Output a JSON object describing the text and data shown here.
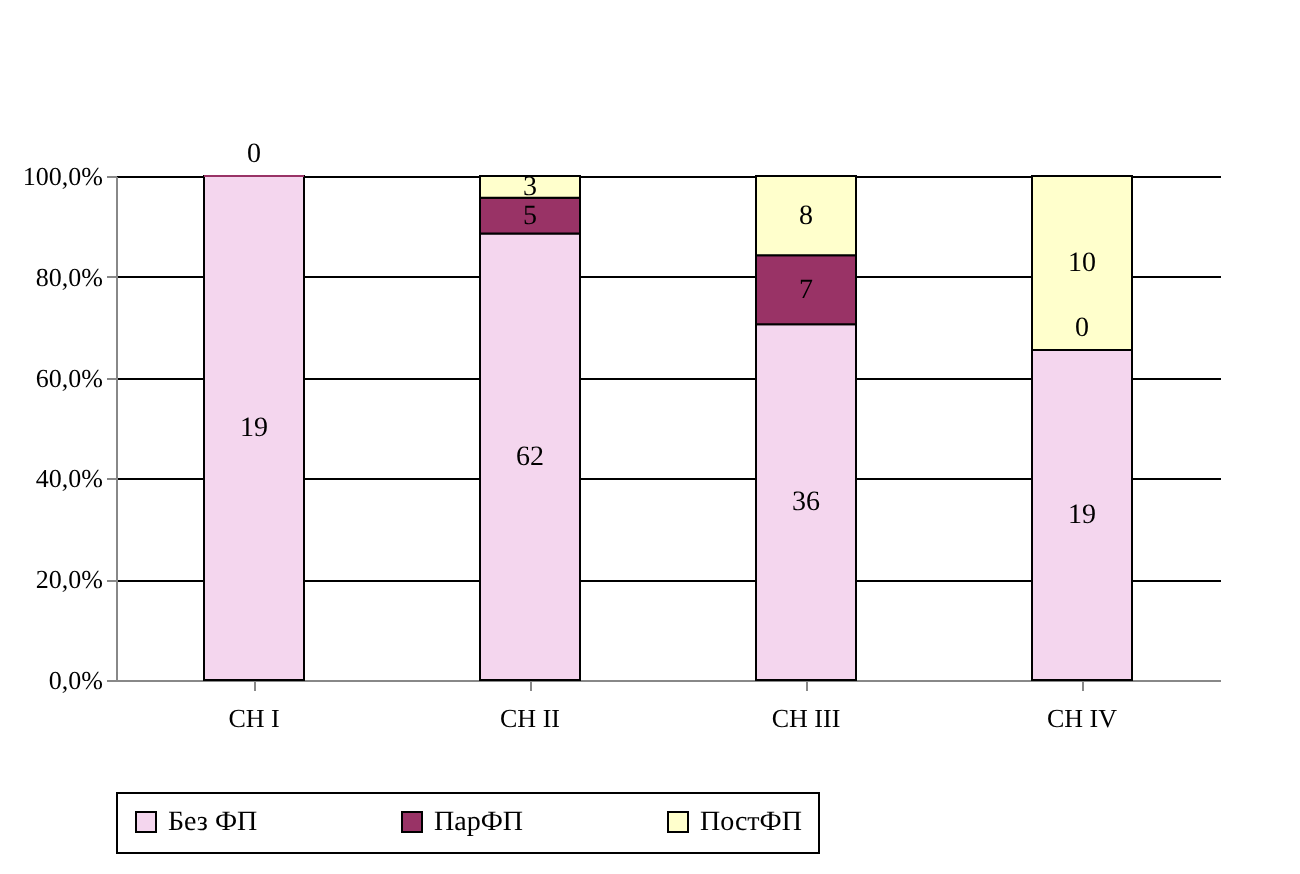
{
  "chart_data": {
    "type": "bar",
    "stacked": true,
    "categories": [
      "CH I",
      "CH II",
      "CH III",
      "CH IV"
    ],
    "series": [
      {
        "name": "Без ФП",
        "color": "#f4d6ee",
        "values": [
          100,
          88.6,
          70.6,
          65.5
        ]
      },
      {
        "name": "ПарФП",
        "color": "#993366",
        "values": [
          0,
          7.1,
          13.7,
          0
        ]
      },
      {
        "name": "ПостФП",
        "color": "#ffffcc",
        "values": [
          null,
          4.3,
          15.7,
          34.5
        ]
      }
    ],
    "annotations": [
      "19",
      "0",
      "62",
      "5",
      "3",
      "36",
      "7",
      "8",
      "19",
      "0",
      "10"
    ],
    "ylim": [
      0,
      100
    ],
    "yticks": [
      {
        "value": 0,
        "label": "0,0%"
      },
      {
        "value": 20,
        "label": "20,0%"
      },
      {
        "value": 40,
        "label": "40,0%"
      },
      {
        "value": 60,
        "label": "60,0%"
      },
      {
        "value": 80,
        "label": "80,0%"
      },
      {
        "value": 100,
        "label": "100,0%"
      }
    ],
    "grid": "y",
    "legend": "bottom"
  }
}
